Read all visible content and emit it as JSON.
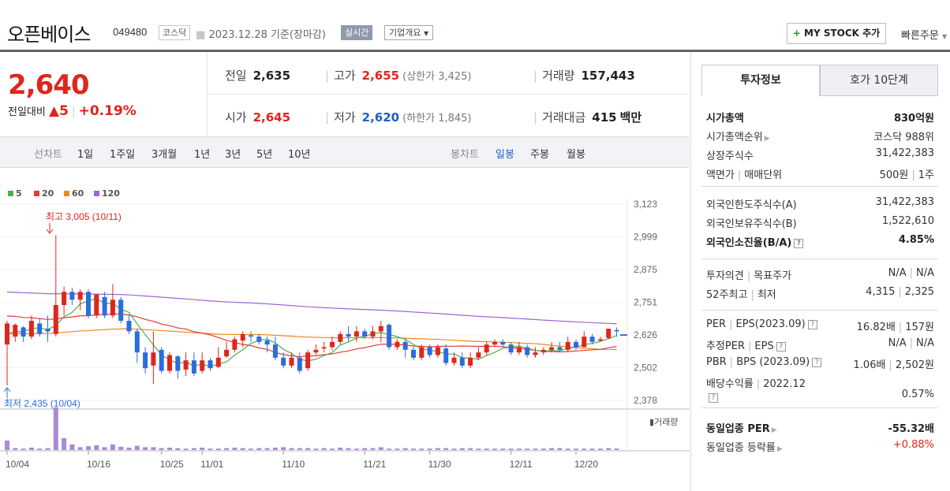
{
  "header": {
    "name": "오픈베이스",
    "code": "049480",
    "market": "코스닥",
    "date": "2023.12.28  기준(장마감)",
    "realtime": "실시간",
    "company": "기업개요",
    "mystock": "MY STOCK 추가",
    "quick": "빠른주문"
  },
  "price": {
    "current": "2,640",
    "change_label": "전일대비",
    "change_arrow": "▲",
    "change": "5",
    "change_pct": "+0.19%"
  },
  "summary": {
    "prev_label": "전일",
    "prev": "2,635",
    "high_label": "고가",
    "high": "2,655",
    "upper": "(상한가 3,425)",
    "vol_label": "거래량",
    "vol": "157,443",
    "open_label": "시가",
    "open": "2,645",
    "low_label": "저가",
    "low": "2,620",
    "lower": "(하한가 1,845)",
    "amt_label": "거래대금",
    "amt": "415",
    "amt_unit": "백만"
  },
  "period": {
    "line_label": "선차트",
    "line": [
      "1일",
      "1주일",
      "3개월",
      "1년",
      "3년",
      "5년",
      "10년"
    ],
    "candle_label": "봉차트",
    "candle": [
      "일봉",
      "주봉",
      "월봉"
    ]
  },
  "legend": [
    {
      "label": "5",
      "color": "#4caf50"
    },
    {
      "label": "20",
      "color": "#e53935"
    },
    {
      "label": "60",
      "color": "#f08a1d"
    },
    {
      "label": "120",
      "color": "#9c64d6"
    }
  ],
  "chart_data": {
    "type": "candlestick",
    "y_ticks": [
      "3,123",
      "2,999",
      "2,875",
      "2,751",
      "2,626",
      "2,502",
      "2,378"
    ],
    "x_ticks": [
      "10/04",
      "10/16",
      "10/25",
      "11/01",
      "11/10",
      "11/21",
      "11/30",
      "12/11",
      "12/20"
    ],
    "high_note": "최고 3,005 (10/11)",
    "low_note": "최저 2,435 (10/04)",
    "volume_label": "거래량",
    "candles": [
      [
        2590,
        2670,
        2435,
        2680
      ],
      [
        2620,
        2665,
        2600,
        2670
      ],
      [
        2655,
        2620,
        2600,
        2660
      ],
      [
        2620,
        2680,
        2610,
        2700
      ],
      [
        2670,
        2630,
        2620,
        2690
      ],
      [
        2650,
        2640,
        2600,
        2700
      ],
      [
        2630,
        2740,
        2620,
        3005
      ],
      [
        2740,
        2790,
        2700,
        2810
      ],
      [
        2790,
        2760,
        2740,
        2805
      ],
      [
        2760,
        2790,
        2720,
        2800
      ],
      [
        2790,
        2700,
        2690,
        2800
      ],
      [
        2700,
        2780,
        2690,
        2780
      ],
      [
        2770,
        2700,
        2690,
        2790
      ],
      [
        2700,
        2760,
        2690,
        2820
      ],
      [
        2760,
        2680,
        2670,
        2770
      ],
      [
        2680,
        2640,
        2630,
        2700
      ],
      [
        2640,
        2560,
        2520,
        2650
      ],
      [
        2560,
        2500,
        2480,
        2580
      ],
      [
        2510,
        2560,
        2440,
        2640
      ],
      [
        2570,
        2490,
        2480,
        2580
      ],
      [
        2490,
        2550,
        2480,
        2560
      ],
      [
        2545,
        2490,
        2460,
        2550
      ],
      [
        2495,
        2530,
        2470,
        2560
      ],
      [
        2530,
        2480,
        2470,
        2560
      ],
      [
        2490,
        2530,
        2480,
        2560
      ],
      [
        2530,
        2500,
        2490,
        2540
      ],
      [
        2505,
        2540,
        2500,
        2580
      ],
      [
        2545,
        2570,
        2540,
        2600
      ],
      [
        2570,
        2610,
        2560,
        2620
      ],
      [
        2605,
        2630,
        2580,
        2640
      ],
      [
        2625,
        2620,
        2600,
        2640
      ],
      [
        2620,
        2600,
        2590,
        2630
      ],
      [
        2605,
        2590,
        2560,
        2620
      ],
      [
        2590,
        2540,
        2530,
        2620
      ],
      [
        2540,
        2510,
        2500,
        2560
      ],
      [
        2510,
        2540,
        2500,
        2560
      ],
      [
        2540,
        2490,
        2480,
        2560
      ],
      [
        2500,
        2560,
        2490,
        2570
      ],
      [
        2560,
        2570,
        2550,
        2590
      ],
      [
        2575,
        2580,
        2560,
        2600
      ],
      [
        2580,
        2600,
        2570,
        2620
      ],
      [
        2600,
        2630,
        2590,
        2640
      ],
      [
        2630,
        2620,
        2600,
        2660
      ],
      [
        2620,
        2640,
        2600,
        2660
      ],
      [
        2640,
        2620,
        2610,
        2650
      ],
      [
        2620,
        2640,
        2610,
        2660
      ],
      [
        2640,
        2660,
        2600,
        2680
      ],
      [
        2665,
        2580,
        2570,
        2670
      ],
      [
        2580,
        2600,
        2570,
        2610
      ],
      [
        2600,
        2570,
        2540,
        2610
      ],
      [
        2570,
        2540,
        2530,
        2580
      ],
      [
        2540,
        2580,
        2530,
        2590
      ],
      [
        2580,
        2550,
        2540,
        2590
      ],
      [
        2550,
        2580,
        2540,
        2590
      ],
      [
        2575,
        2520,
        2510,
        2590
      ],
      [
        2520,
        2540,
        2510,
        2560
      ],
      [
        2540,
        2510,
        2500,
        2560
      ],
      [
        2510,
        2540,
        2500,
        2560
      ],
      [
        2540,
        2560,
        2530,
        2580
      ],
      [
        2560,
        2590,
        2550,
        2600
      ],
      [
        2590,
        2600,
        2580,
        2610
      ],
      [
        2600,
        2590,
        2580,
        2610
      ],
      [
        2590,
        2560,
        2550,
        2600
      ],
      [
        2560,
        2580,
        2550,
        2600
      ],
      [
        2580,
        2550,
        2540,
        2590
      ],
      [
        2550,
        2560,
        2540,
        2580
      ],
      [
        2560,
        2570,
        2550,
        2580
      ],
      [
        2570,
        2580,
        2560,
        2600
      ],
      [
        2580,
        2570,
        2560,
        2600
      ],
      [
        2570,
        2600,
        2560,
        2620
      ],
      [
        2600,
        2580,
        2570,
        2610
      ],
      [
        2580,
        2620,
        2580,
        2640
      ],
      [
        2620,
        2600,
        2590,
        2630
      ],
      [
        2605,
        2610,
        2600,
        2620
      ],
      [
        2615,
        2650,
        2610,
        2650
      ],
      [
        2645,
        2640,
        2620,
        2655
      ]
    ],
    "volumes": [
      20,
      4,
      3,
      5,
      3,
      4,
      90,
      25,
      12,
      6,
      8,
      10,
      6,
      12,
      7,
      5,
      9,
      6,
      6,
      4,
      5,
      4,
      3,
      4,
      5,
      3,
      3,
      4,
      5,
      4,
      3,
      4,
      4,
      5,
      6,
      4,
      4,
      4,
      3,
      4,
      3,
      5,
      4,
      3,
      4,
      4,
      6,
      3,
      3,
      4,
      3,
      3,
      3,
      4,
      4,
      3,
      4,
      4,
      3,
      3,
      3,
      3,
      3,
      3,
      3,
      3,
      3,
      4,
      4,
      3,
      3,
      3,
      3,
      3,
      4,
      3
    ]
  },
  "right": {
    "tabs": [
      "투자정보",
      "호가 10단계"
    ],
    "group1": [
      {
        "label": "시가총액",
        "value": "830억원",
        "bold": true
      },
      {
        "label": "시가총액순위",
        "value": "코스닥 988위",
        "arrow": true
      },
      {
        "label": "상장주식수",
        "value": "31,422,383"
      },
      {
        "label": "액면가",
        "label2": "매매단위",
        "value": "500원",
        "value2": "1주"
      }
    ],
    "group2": [
      {
        "label": "외국인한도주식수(A)",
        "value": "31,422,383"
      },
      {
        "label": "외국인보유주식수(B)",
        "value": "1,522,610"
      },
      {
        "label": "외국인소진율(B/A)",
        "value": "4.85%",
        "bold": true,
        "help": true
      }
    ],
    "group3": [
      {
        "label": "투자의견",
        "label2": "목표주가",
        "value": "N/A",
        "value2": "N/A"
      },
      {
        "label": "52주최고",
        "label2": "최저",
        "value": "4,315",
        "value2": "2,325"
      }
    ],
    "group4": [
      {
        "label": "PER",
        "label2": "EPS(2023.09)",
        "value": "16.82배",
        "value2": "157원",
        "help": true
      },
      {
        "label": "추정PER",
        "label2": "EPS",
        "value": "N/A",
        "value2": "N/A",
        "help": true
      },
      {
        "label": "PBR",
        "label2": "BPS (2023.09)",
        "value": "1.06배",
        "value2": "2,502원",
        "help": true
      },
      {
        "label": "배당수익률",
        "label2": "2022.12",
        "value": "0.57%"
      }
    ],
    "group5": [
      {
        "label": "동일업종 PER",
        "value": "-55.32배",
        "bold": true,
        "arrow": true
      },
      {
        "label": "동일업종 등락률",
        "value": "+0.88%",
        "red": true,
        "arrow": true
      }
    ]
  }
}
